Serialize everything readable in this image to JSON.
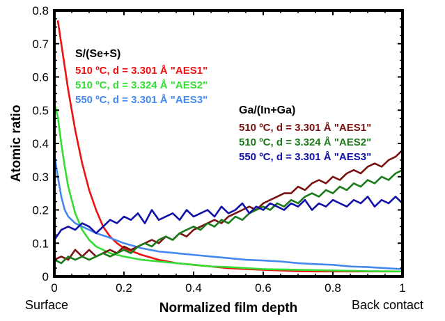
{
  "chart_data": {
    "type": "line",
    "xlabel": "Normalized film depth",
    "ylabel": "Atomic ratio",
    "xlim": [
      0,
      1
    ],
    "ylim": [
      0,
      0.8
    ],
    "x_ticks": [
      "0",
      "0.2",
      "0.4",
      "0.6",
      "0.8",
      "1"
    ],
    "y_ticks": [
      "0",
      "0.1",
      "0.2",
      "0.3",
      "0.4",
      "0.5",
      "0.6",
      "0.7",
      "0.8"
    ],
    "x_end_labels": {
      "left": "Surface",
      "right": "Back contact"
    },
    "grid": false,
    "legend_groups": [
      {
        "title": "S/(Se+S)",
        "position": "top-left",
        "entries": [
          "510 ºC, d = 3.301 Å \"AES1\"",
          "510 ºC, d = 3.324 Å \"AES2\"",
          "550 ºC, d = 3.301 Å \"AES3\""
        ]
      },
      {
        "title": "Ga/(In+Ga)",
        "position": "right",
        "entries": [
          "510 ºC, d = 3.301 Å \"AES1\"",
          "510 ºC, d = 3.324 Å \"AES2\"",
          "550 ºC, d = 3.301 Å \"AES3\""
        ]
      }
    ],
    "series": [
      {
        "name": "S/(Se+S) 510 ºC, d = 3.301 Å \"AES1\"",
        "color": "#ee1111",
        "x": [
          0.01,
          0.02,
          0.04,
          0.06,
          0.08,
          0.1,
          0.12,
          0.14,
          0.16,
          0.18,
          0.2,
          0.25,
          0.3,
          0.35,
          0.4,
          0.45,
          0.5,
          0.55,
          0.6,
          0.65,
          0.7,
          0.75,
          0.8,
          0.85,
          0.9,
          0.95,
          0.99
        ],
        "y": [
          0.77,
          0.7,
          0.56,
          0.44,
          0.34,
          0.26,
          0.2,
          0.15,
          0.12,
          0.1,
          0.085,
          0.065,
          0.05,
          0.04,
          0.035,
          0.03,
          0.025,
          0.022,
          0.02,
          0.018,
          0.016,
          0.015,
          0.015,
          0.015,
          0.015,
          0.015,
          0.015
        ]
      },
      {
        "name": "S/(Se+S) 510 ºC, d = 3.324 Å \"AES2\"",
        "color": "#33dd33",
        "x": [
          0.0,
          0.01,
          0.02,
          0.03,
          0.04,
          0.06,
          0.08,
          0.1,
          0.12,
          0.14,
          0.16,
          0.18,
          0.2,
          0.25,
          0.3,
          0.35,
          0.4,
          0.45,
          0.5,
          0.55,
          0.6,
          0.7,
          0.8,
          0.9,
          1.0
        ],
        "y": [
          0.52,
          0.48,
          0.4,
          0.33,
          0.27,
          0.19,
          0.14,
          0.11,
          0.09,
          0.08,
          0.07,
          0.065,
          0.06,
          0.05,
          0.045,
          0.04,
          0.035,
          0.03,
          0.028,
          0.025,
          0.022,
          0.02,
          0.018,
          0.016,
          0.015
        ]
      },
      {
        "name": "S/(Se+S) 550 ºC, d = 3.301 Å \"AES3\"",
        "color": "#4488ee",
        "x": [
          0.0,
          0.01,
          0.02,
          0.03,
          0.04,
          0.05,
          0.06,
          0.08,
          0.1,
          0.12,
          0.15,
          0.2,
          0.25,
          0.3,
          0.35,
          0.4,
          0.45,
          0.5,
          0.55,
          0.6,
          0.65,
          0.7,
          0.75,
          0.8,
          0.85,
          0.9,
          0.95,
          1.0
        ],
        "y": [
          0.37,
          0.3,
          0.24,
          0.2,
          0.18,
          0.17,
          0.16,
          0.15,
          0.14,
          0.13,
          0.12,
          0.1,
          0.085,
          0.075,
          0.07,
          0.065,
          0.06,
          0.055,
          0.05,
          0.048,
          0.045,
          0.04,
          0.037,
          0.035,
          0.03,
          0.028,
          0.025,
          0.022
        ]
      },
      {
        "name": "Ga/(In+Ga) 510 ºC, d = 3.301 Å \"AES1\"",
        "color": "#7a1212",
        "x": [
          0.0,
          0.02,
          0.04,
          0.06,
          0.08,
          0.1,
          0.12,
          0.14,
          0.16,
          0.18,
          0.2,
          0.22,
          0.24,
          0.26,
          0.28,
          0.3,
          0.32,
          0.34,
          0.36,
          0.38,
          0.4,
          0.42,
          0.44,
          0.46,
          0.48,
          0.5,
          0.52,
          0.54,
          0.56,
          0.58,
          0.6,
          0.62,
          0.64,
          0.66,
          0.68,
          0.7,
          0.72,
          0.74,
          0.76,
          0.78,
          0.8,
          0.82,
          0.84,
          0.86,
          0.88,
          0.9,
          0.92,
          0.94,
          0.96,
          0.98,
          1.0
        ],
        "y": [
          0.05,
          0.06,
          0.05,
          0.08,
          0.06,
          0.08,
          0.06,
          0.07,
          0.08,
          0.07,
          0.09,
          0.08,
          0.09,
          0.1,
          0.11,
          0.1,
          0.12,
          0.11,
          0.13,
          0.12,
          0.14,
          0.15,
          0.16,
          0.17,
          0.16,
          0.18,
          0.19,
          0.2,
          0.21,
          0.2,
          0.22,
          0.23,
          0.24,
          0.25,
          0.25,
          0.27,
          0.26,
          0.28,
          0.29,
          0.28,
          0.3,
          0.29,
          0.31,
          0.32,
          0.31,
          0.33,
          0.34,
          0.33,
          0.35,
          0.36,
          0.38
        ]
      },
      {
        "name": "Ga/(In+Ga) 510 ºC, d = 3.324 Å \"AES2\"",
        "color": "#1a7a1a",
        "x": [
          0.0,
          0.02,
          0.04,
          0.06,
          0.08,
          0.1,
          0.12,
          0.14,
          0.16,
          0.18,
          0.2,
          0.22,
          0.24,
          0.26,
          0.28,
          0.3,
          0.32,
          0.34,
          0.36,
          0.38,
          0.4,
          0.42,
          0.44,
          0.46,
          0.48,
          0.5,
          0.52,
          0.54,
          0.56,
          0.58,
          0.6,
          0.62,
          0.64,
          0.66,
          0.68,
          0.7,
          0.72,
          0.74,
          0.76,
          0.78,
          0.8,
          0.82,
          0.84,
          0.86,
          0.88,
          0.9,
          0.92,
          0.94,
          0.96,
          0.98,
          1.0
        ],
        "y": [
          0.05,
          0.04,
          0.06,
          0.05,
          0.06,
          0.05,
          0.06,
          0.07,
          0.06,
          0.07,
          0.08,
          0.07,
          0.09,
          0.1,
          0.09,
          0.11,
          0.12,
          0.11,
          0.13,
          0.14,
          0.15,
          0.14,
          0.16,
          0.15,
          0.17,
          0.16,
          0.18,
          0.17,
          0.19,
          0.2,
          0.21,
          0.2,
          0.22,
          0.21,
          0.23,
          0.22,
          0.24,
          0.25,
          0.24,
          0.26,
          0.25,
          0.27,
          0.26,
          0.28,
          0.27,
          0.29,
          0.28,
          0.3,
          0.29,
          0.31,
          0.32
        ]
      },
      {
        "name": "Ga/(In+Ga) 550 ºC, d = 3.301 Å \"AES3\"",
        "color": "#1111aa",
        "x": [
          0.0,
          0.02,
          0.04,
          0.06,
          0.08,
          0.1,
          0.12,
          0.14,
          0.16,
          0.18,
          0.2,
          0.22,
          0.24,
          0.26,
          0.28,
          0.3,
          0.32,
          0.34,
          0.36,
          0.38,
          0.4,
          0.42,
          0.44,
          0.46,
          0.48,
          0.5,
          0.52,
          0.54,
          0.56,
          0.58,
          0.6,
          0.62,
          0.64,
          0.66,
          0.68,
          0.7,
          0.72,
          0.74,
          0.76,
          0.78,
          0.8,
          0.82,
          0.84,
          0.86,
          0.88,
          0.9,
          0.92,
          0.94,
          0.96,
          0.98,
          1.0
        ],
        "y": [
          0.11,
          0.14,
          0.15,
          0.14,
          0.16,
          0.15,
          0.13,
          0.15,
          0.17,
          0.16,
          0.18,
          0.17,
          0.19,
          0.16,
          0.2,
          0.17,
          0.18,
          0.19,
          0.17,
          0.2,
          0.18,
          0.19,
          0.2,
          0.18,
          0.21,
          0.19,
          0.2,
          0.22,
          0.19,
          0.21,
          0.2,
          0.22,
          0.21,
          0.2,
          0.22,
          0.21,
          0.23,
          0.2,
          0.22,
          0.21,
          0.23,
          0.22,
          0.21,
          0.23,
          0.22,
          0.24,
          0.21,
          0.23,
          0.22,
          0.24,
          0.22
        ]
      }
    ]
  }
}
